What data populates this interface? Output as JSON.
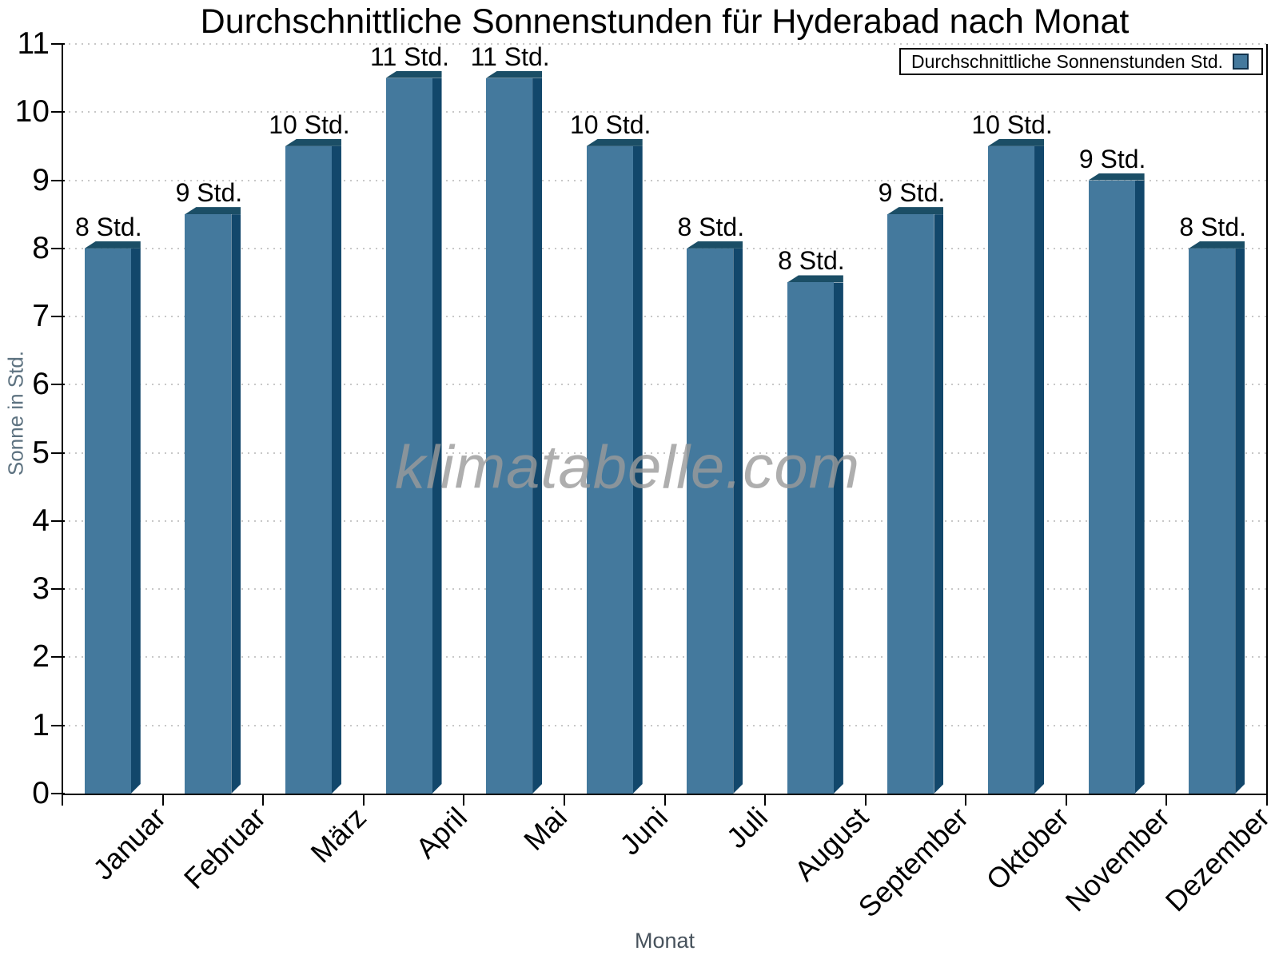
{
  "title": "Durchschnittliche Sonnenstunden für Hyderabad nach Monat",
  "watermark": "klimatabelle.com",
  "legend": {
    "label": "Durchschnittliche Sonnenstunden Std."
  },
  "chart_data": {
    "type": "bar",
    "title": "Durchschnittliche Sonnenstunden für Hyderabad nach Monat",
    "xlabel": "Monat",
    "ylabel": "Sonne in Std.",
    "categories": [
      "Januar",
      "Februar",
      "März",
      "April",
      "Mai",
      "Juni",
      "Juli",
      "August",
      "September",
      "Oktober",
      "November",
      "Dezember"
    ],
    "values": [
      8,
      8.5,
      9.5,
      10.5,
      10.5,
      9.5,
      8,
      7.5,
      8.5,
      9.5,
      9,
      8
    ],
    "bar_labels": [
      "8 Std.",
      "9 Std.",
      "10 Std.",
      "11 Std.",
      "11 Std.",
      "10 Std.",
      "8 Std.",
      "8 Std.",
      "9 Std.",
      "10 Std.",
      "9 Std.",
      "8 Std."
    ],
    "series_name": "Durchschnittliche Sonnenstunden Std.",
    "ylim": [
      0,
      11
    ],
    "yticks": [
      0,
      1,
      2,
      3,
      4,
      5,
      6,
      7,
      8,
      9,
      10,
      11
    ],
    "grid": true,
    "grid_style": "dotted",
    "legend_position": "top-right",
    "colors": {
      "bar_fill": "#44799D",
      "bar_side": "#12476B",
      "bar_top": "#1B4E66",
      "grid": "#c8c8c8",
      "axis": "#000000",
      "xlabel_text": "#47525c",
      "ylabel_text": "#5d7280",
      "watermark": "#9b9b9b"
    }
  }
}
